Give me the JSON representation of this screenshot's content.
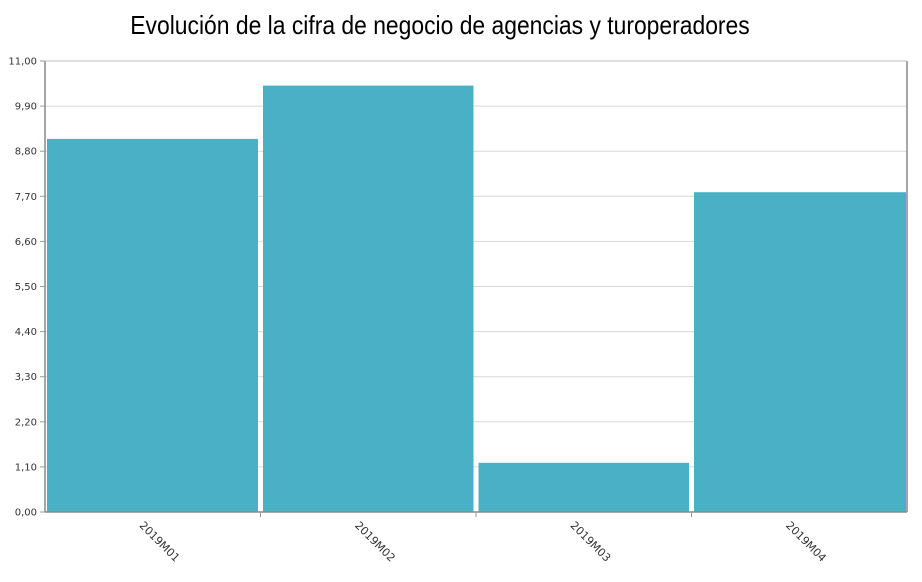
{
  "chart_data": {
    "type": "bar",
    "title": "Evolución de la cifra de negocio de agencias y turoperadores",
    "categories": [
      "2019M01",
      "2019M02",
      "2019M03",
      "2019M04"
    ],
    "values": [
      9.1,
      10.4,
      1.2,
      7.8
    ],
    "ylim": [
      0,
      11
    ],
    "yticks": [
      "0,00",
      "1,10",
      "2,20",
      "3,30",
      "4,40",
      "5,50",
      "6,60",
      "7,70",
      "8,80",
      "9,90",
      "11,00"
    ],
    "xlabel": "",
    "ylabel": "",
    "grid": true,
    "bar_color": "#4ab0c5"
  }
}
